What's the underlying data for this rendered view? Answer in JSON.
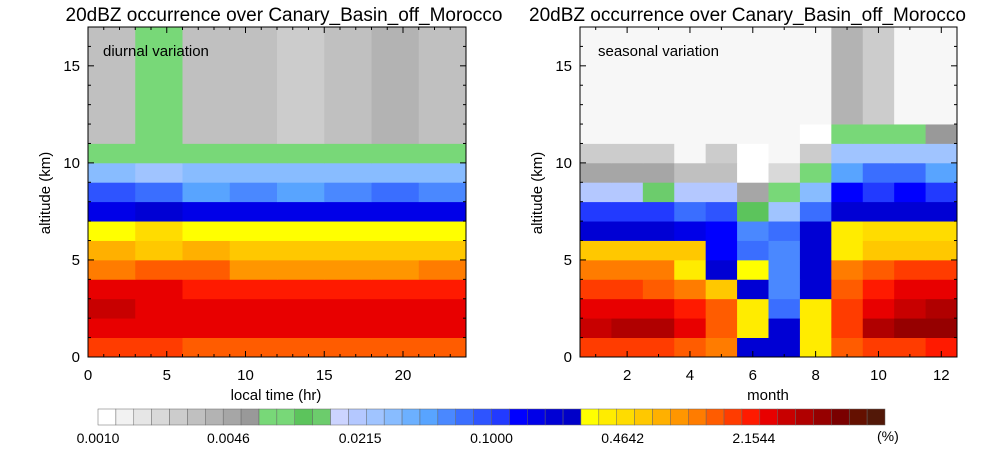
{
  "chart_data": [
    {
      "type": "heatmap",
      "title": "20dBZ occurrence over Canary_Basin_off_Morocco",
      "annotation": "diurnal variation",
      "xlabel": "local time (hr)",
      "ylabel": "altitude (km)",
      "xlim": [
        0,
        24
      ],
      "ylim": [
        0,
        17
      ],
      "xticks": [
        0,
        5,
        10,
        15,
        20
      ],
      "yticks": [
        0,
        5,
        10,
        15
      ],
      "x_edges": [
        0,
        3,
        6,
        9,
        12,
        15,
        18,
        21,
        24
      ],
      "y_edges": [
        0,
        1,
        2,
        3,
        4,
        5,
        6,
        7,
        8,
        9,
        10,
        11,
        17
      ],
      "values_percent": [
        [
          1.8,
          1.8,
          1.4,
          1.4,
          1.4,
          1.4,
          1.4,
          1.4
        ],
        [
          2.6,
          2.4,
          2.4,
          2.4,
          2.4,
          2.4,
          2.4,
          2.6
        ],
        [
          3.0,
          2.8,
          2.8,
          2.6,
          2.6,
          2.6,
          2.6,
          2.6
        ],
        [
          2.4,
          2.4,
          2.2,
          2.2,
          2.2,
          2.2,
          2.2,
          2.2
        ],
        [
          1.0,
          1.4,
          1.4,
          0.95,
          0.95,
          0.95,
          0.95,
          1.1
        ],
        [
          0.8,
          0.55,
          0.7,
          0.55,
          0.55,
          0.55,
          0.6,
          0.55
        ],
        [
          0.29,
          0.47,
          0.29,
          0.29,
          0.29,
          0.29,
          0.29,
          0.29
        ],
        [
          0.17,
          0.22,
          0.17,
          0.18,
          0.18,
          0.17,
          0.18,
          0.17
        ],
        [
          0.085,
          0.07,
          0.05,
          0.06,
          0.05,
          0.06,
          0.07,
          0.06
        ],
        [
          0.029,
          0.026,
          0.029,
          0.029,
          0.029,
          0.029,
          0.029,
          0.029
        ],
        [
          0.0075,
          0.0085,
          0.0075,
          0.0085,
          0.0075,
          0.0085,
          0.0085,
          0.0075
        ],
        [
          0.0034,
          0.0085,
          0.0029,
          0.0034,
          0.0026,
          0.0031,
          0.0036,
          0.0031
        ]
      ]
    },
    {
      "type": "heatmap",
      "title": "20dBZ occurrence over Canary_Basin_off_Morocco",
      "annotation": "seasonal variation",
      "xlabel": "month",
      "ylabel": "altitude (km)",
      "xlim": [
        0.5,
        12.5
      ],
      "ylim": [
        0,
        17
      ],
      "xticks": [
        2,
        4,
        6,
        8,
        10,
        12
      ],
      "yticks": [
        0,
        5,
        10,
        15
      ],
      "x_edges": [
        0.5,
        1.5,
        2.5,
        3.5,
        4.5,
        5.5,
        6.5,
        7.5,
        8.5,
        9.5,
        10.5,
        11.5,
        12.5
      ],
      "y_edges": [
        0,
        1,
        2,
        3,
        4,
        5,
        6,
        7,
        8,
        9,
        10,
        11,
        12,
        17
      ],
      "values_percent": [
        [
          1.8,
          1.8,
          1.8,
          1.4,
          1.0,
          0.2,
          0.2,
          0.43,
          1.4,
          1.8,
          1.8,
          1.9
        ],
        [
          3.4,
          3.6,
          3.6,
          2.6,
          1.4,
          0.43,
          0.2,
          0.43,
          1.8,
          3.8,
          4.6,
          5.2
        ],
        [
          2.6,
          2.8,
          2.6,
          2.2,
          1.4,
          0.43,
          0.08,
          0.43,
          1.8,
          2.8,
          3.2,
          4.2
        ],
        [
          1.8,
          1.8,
          1.4,
          1.0,
          0.6,
          0.2,
          0.055,
          0.2,
          1.4,
          2.2,
          2.4,
          2.6
        ],
        [
          1.0,
          1.0,
          1.0,
          0.43,
          0.2,
          0.35,
          0.055,
          0.2,
          1.0,
          1.4,
          1.6,
          1.6
        ],
        [
          0.6,
          0.6,
          0.6,
          0.55,
          0.15,
          0.08,
          0.055,
          0.2,
          0.43,
          0.55,
          0.6,
          0.6
        ],
        [
          0.2,
          0.2,
          0.2,
          0.18,
          0.13,
          0.065,
          0.08,
          0.2,
          0.43,
          0.47,
          0.47,
          0.47
        ],
        [
          0.12,
          0.12,
          0.11,
          0.07,
          0.09,
          0.01,
          0.025,
          0.075,
          0.2,
          0.2,
          0.2,
          0.2
        ],
        [
          0.022,
          0.022,
          0.013,
          0.022,
          0.022,
          0.005,
          0.0085,
          0.035,
          0.14,
          0.12,
          0.13,
          0.12
        ],
        [
          0.005,
          0.005,
          0.005,
          0.0032,
          0.0032,
          0.001,
          0.002,
          0.0075,
          0.045,
          0.07,
          0.07,
          0.05
        ],
        [
          0.0026,
          0.0026,
          0.0026,
          0,
          0.0024,
          0.001,
          0,
          0.0026,
          0.027,
          0.026,
          0.026,
          0.027
        ],
        [
          0,
          0,
          0,
          0,
          0,
          0,
          0,
          0.0012,
          0.0085,
          0.0085,
          0.0085,
          0.0055
        ],
        [
          0,
          0,
          0,
          0,
          0,
          0,
          0,
          0,
          0.0036,
          0.0026,
          0,
          0
        ]
      ]
    }
  ],
  "colorbar": {
    "unit_label": "(%)",
    "tick_labels": [
      "0.0010",
      "0.0046",
      "0.0215",
      "0.1000",
      "0.4642",
      "2.1544"
    ],
    "tick_values": [
      0.001,
      0.0046,
      0.0215,
      0.1,
      0.4642,
      2.1544
    ],
    "min": 0.001,
    "max": 10,
    "log_scale": true,
    "levels": 40,
    "colors": [
      "#ffffff",
      "#f2f2f2",
      "#e6e6e6",
      "#d9d9d9",
      "#cccccc",
      "#c0c0c0",
      "#b3b3b3",
      "#a6a6a6",
      "#999999",
      "#78d878",
      "#78d878",
      "#5cc45c",
      "#6ccc6c",
      "#ccd4ff",
      "#b4c8ff",
      "#a0c4ff",
      "#88bcff",
      "#6cb0ff",
      "#58a4ff",
      "#4a88ff",
      "#3a6eff",
      "#2e54ff",
      "#223aff",
      "#0000ff",
      "#0000e8",
      "#0000d4",
      "#0000c8",
      "#ffff00",
      "#ffec00",
      "#ffdc00",
      "#ffc800",
      "#ffb000",
      "#ff9600",
      "#ff7c00",
      "#ff5c00",
      "#ff3c00",
      "#ff1a00",
      "#e80000",
      "#c80000",
      "#b00000",
      "#960000",
      "#7a0000",
      "#641000",
      "#521808"
    ]
  }
}
